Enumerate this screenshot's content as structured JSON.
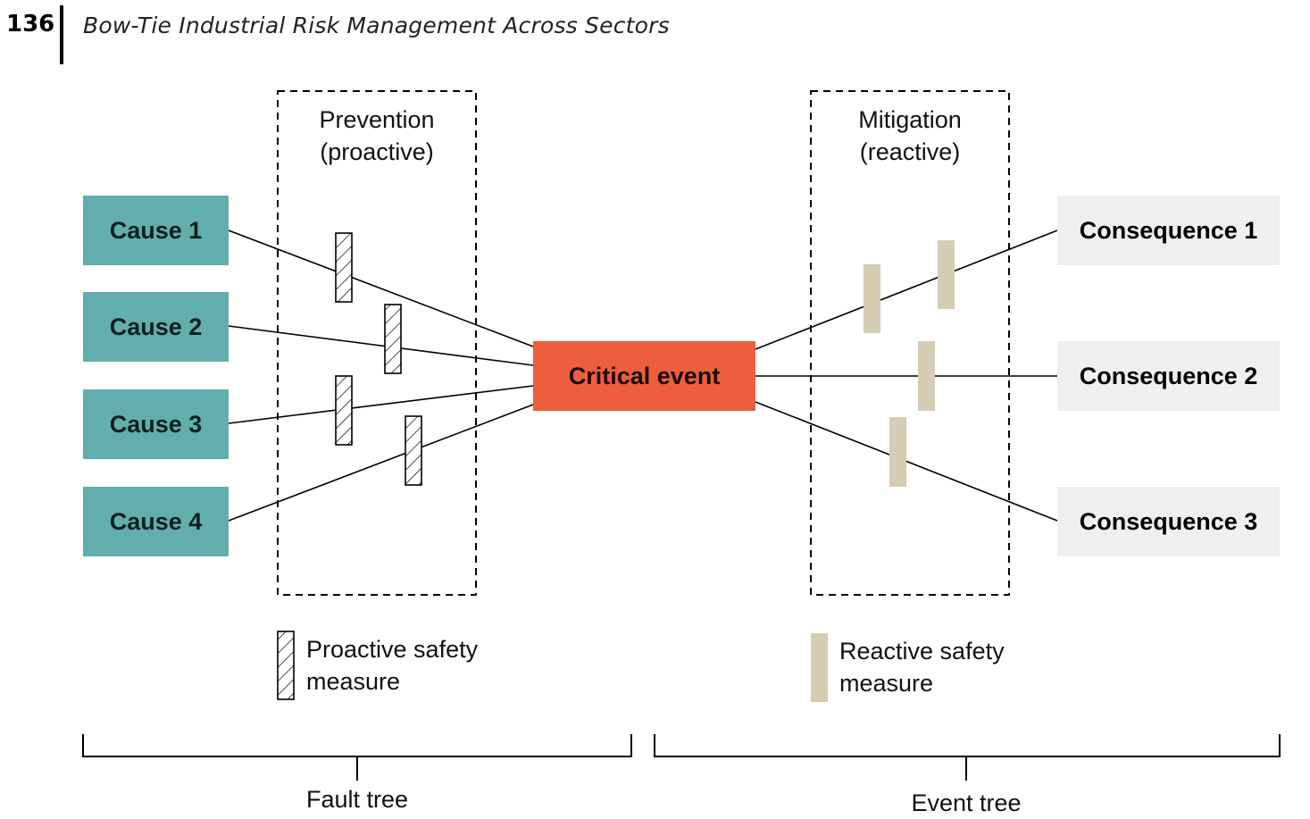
{
  "header": {
    "page_number": "136",
    "running_title": "Bow-Tie Industrial Risk Management Across Sectors"
  },
  "groups": {
    "prevention_line1": "Prevention",
    "prevention_line2": "(proactive)",
    "mitigation_line1": "Mitigation",
    "mitigation_line2": "(reactive)"
  },
  "causes": [
    "Cause 1",
    "Cause 2",
    "Cause 3",
    "Cause 4"
  ],
  "critical_event": "Critical event",
  "consequences": [
    "Consequence 1",
    "Consequence 2",
    "Consequence 3"
  ],
  "legend": {
    "proactive_line1": "Proactive safety",
    "proactive_line2": "measure",
    "reactive_line1": "Reactive safety",
    "reactive_line2": "measure"
  },
  "trees": {
    "fault": "Fault tree",
    "event": "Event tree"
  },
  "colors": {
    "cause_fill": "#62aeac",
    "critical_fill": "#ec5e3c",
    "consequence_fill": "#efefef",
    "reactive_measure": "#d6cbb3"
  }
}
